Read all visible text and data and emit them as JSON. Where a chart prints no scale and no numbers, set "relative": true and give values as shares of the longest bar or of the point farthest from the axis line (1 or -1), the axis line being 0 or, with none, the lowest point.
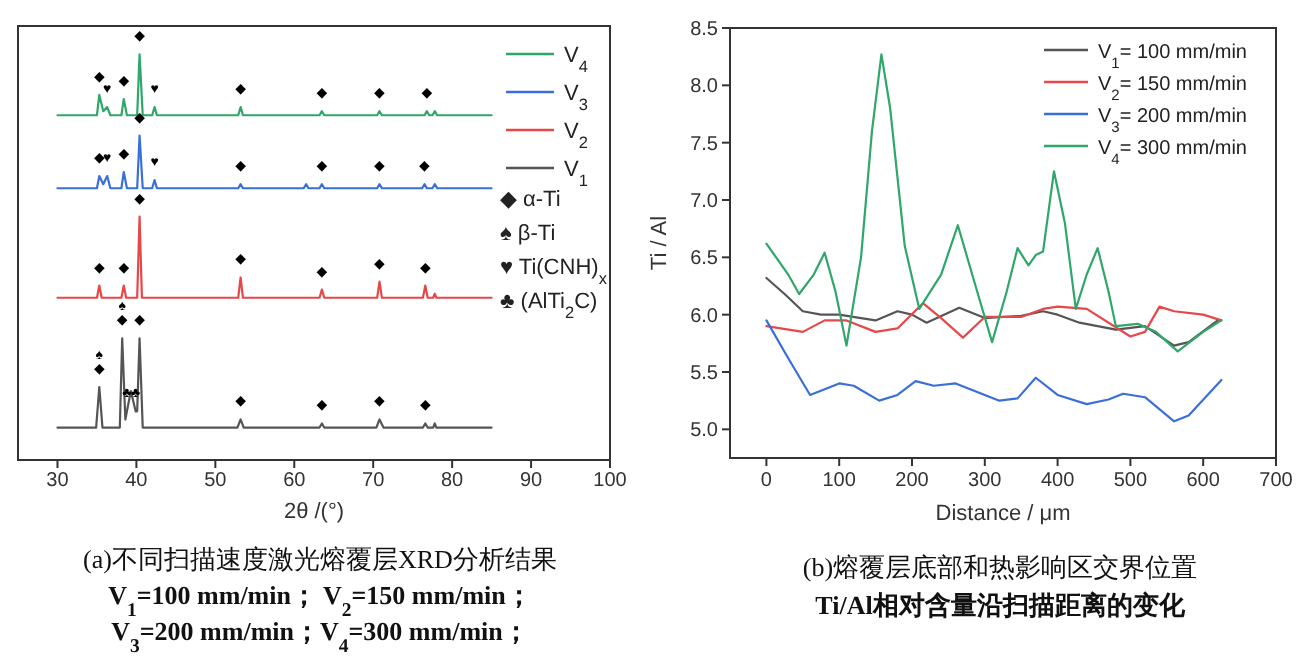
{
  "chart_data": [
    {
      "type": "line",
      "title": "(a)不同扫描速度激光熔覆层XRD分析结果",
      "subtitle": "V$_{1}$=100 mm/min；  V$_{2}$=150 mm/min；\nV$_{3}$=200 mm/min；V$_{4}$=300 mm/min；",
      "xlabel": "2θ /(°)",
      "relative": true,
      "xlim": [
        25,
        100
      ],
      "xticks": [
        30,
        40,
        50,
        60,
        70,
        80,
        90,
        100
      ],
      "legend": "top right",
      "series": [
        {
          "name": "V$_{4}$",
          "color": "#2fa66a",
          "x": [
            30,
            35.0,
            35.3,
            35.8,
            36.3,
            36.7,
            38.1,
            38.4,
            38.8,
            40.1,
            40.4,
            40.8,
            42.0,
            42.3,
            42.6,
            52.9,
            53.2,
            53.5,
            63.2,
            63.5,
            63.8,
            70.5,
            70.8,
            71.1,
            76.5,
            76.8,
            77.1,
            77.5,
            77.8,
            78.1,
            85
          ],
          "values": [
            0.85,
            0.85,
            0.9,
            0.86,
            0.87,
            0.85,
            0.85,
            0.89,
            0.85,
            0.85,
            1.0,
            0.85,
            0.85,
            0.87,
            0.85,
            0.85,
            0.87,
            0.85,
            0.85,
            0.86,
            0.85,
            0.85,
            0.86,
            0.85,
            0.85,
            0.86,
            0.85,
            0.85,
            0.86,
            0.85,
            0.85
          ]
        },
        {
          "name": "V$_{3}$",
          "color": "#3a6fd8",
          "x": [
            30,
            35.0,
            35.3,
            35.8,
            36.3,
            36.7,
            38.1,
            38.4,
            38.8,
            40.1,
            40.4,
            40.8,
            42.0,
            42.3,
            42.6,
            52.9,
            53.2,
            53.5,
            61.2,
            61.5,
            61.8,
            63.2,
            63.5,
            63.8,
            70.5,
            70.8,
            71.1,
            76.2,
            76.5,
            76.8,
            77.5,
            77.8,
            78.1,
            85
          ],
          "values": [
            0.67,
            0.67,
            0.7,
            0.68,
            0.7,
            0.67,
            0.67,
            0.71,
            0.67,
            0.67,
            0.8,
            0.67,
            0.67,
            0.69,
            0.67,
            0.67,
            0.68,
            0.67,
            0.67,
            0.68,
            0.67,
            0.67,
            0.68,
            0.67,
            0.67,
            0.68,
            0.67,
            0.67,
            0.68,
            0.67,
            0.67,
            0.68,
            0.67,
            0.67
          ]
        },
        {
          "name": "V$_{2}$",
          "color": "#e8474a",
          "x": [
            30,
            35.0,
            35.3,
            35.6,
            38.1,
            38.4,
            38.7,
            40.1,
            40.4,
            40.7,
            52.9,
            53.2,
            53.5,
            63.2,
            63.5,
            63.8,
            70.5,
            70.8,
            71.1,
            76.3,
            76.6,
            76.9,
            77.6,
            77.8,
            78.0,
            85
          ],
          "values": [
            0.4,
            0.4,
            0.43,
            0.4,
            0.4,
            0.43,
            0.4,
            0.4,
            0.6,
            0.4,
            0.4,
            0.45,
            0.4,
            0.4,
            0.42,
            0.4,
            0.4,
            0.44,
            0.4,
            0.4,
            0.43,
            0.4,
            0.4,
            0.41,
            0.4,
            0.4
          ]
        },
        {
          "name": "V$_{1}$",
          "color": "#555555",
          "x": [
            30,
            34.9,
            35.3,
            35.7,
            37.9,
            38.2,
            38.6,
            38.8,
            39.3,
            39.9,
            40.1,
            40.4,
            40.8,
            52.8,
            53.2,
            53.6,
            63.2,
            63.5,
            63.8,
            70.4,
            70.8,
            71.3,
            76.3,
            76.6,
            76.9,
            77.6,
            77.8,
            78.0,
            85
          ],
          "values": [
            0.08,
            0.08,
            0.18,
            0.08,
            0.08,
            0.3,
            0.1,
            0.12,
            0.17,
            0.12,
            0.12,
            0.3,
            0.08,
            0.08,
            0.1,
            0.08,
            0.08,
            0.09,
            0.08,
            0.08,
            0.1,
            0.08,
            0.08,
            0.09,
            0.08,
            0.08,
            0.09,
            0.08,
            0.08
          ]
        }
      ],
      "annotations": [
        "◆ α-Ti",
        "♠ β-Ti",
        "♥ Ti(CNH)$_{x}$",
        "♣ (AlTi$_{2}$C)",
        {
          "text": "◆",
          "x": 35.3,
          "y": 0.9
        },
        {
          "text": "♥",
          "x": 36.3,
          "y": 0.87
        },
        {
          "text": "◆",
          "x": 38.4,
          "y": 0.89
        },
        {
          "text": "◆",
          "x": 40.4,
          "y": 1.0
        },
        {
          "text": "♥",
          "x": 42.3,
          "y": 0.87
        },
        {
          "text": "◆",
          "x": 53.2,
          "y": 0.87
        },
        {
          "text": "◆",
          "x": 63.5,
          "y": 0.86
        },
        {
          "text": "◆",
          "x": 70.8,
          "y": 0.86
        },
        {
          "text": "◆",
          "x": 76.8,
          "y": 0.86
        },
        {
          "text": "◆",
          "x": 35.3,
          "y": 0.7
        },
        {
          "text": "♥",
          "x": 36.3,
          "y": 0.7
        },
        {
          "text": "◆",
          "x": 38.4,
          "y": 0.71
        },
        {
          "text": "◆",
          "x": 40.4,
          "y": 0.8
        },
        {
          "text": "♥",
          "x": 42.3,
          "y": 0.69
        },
        {
          "text": "◆",
          "x": 53.2,
          "y": 0.68
        },
        {
          "text": "◆",
          "x": 63.5,
          "y": 0.68
        },
        {
          "text": "◆",
          "x": 70.8,
          "y": 0.68
        },
        {
          "text": "◆",
          "x": 76.5,
          "y": 0.68
        },
        {
          "text": "◆",
          "x": 35.3,
          "y": 0.43
        },
        {
          "text": "◆",
          "x": 38.4,
          "y": 0.43
        },
        {
          "text": "◆",
          "x": 40.4,
          "y": 0.6
        },
        {
          "text": "◆",
          "x": 53.2,
          "y": 0.45
        },
        {
          "text": "◆",
          "x": 63.5,
          "y": 0.42
        },
        {
          "text": "◆",
          "x": 70.8,
          "y": 0.44
        },
        {
          "text": "◆",
          "x": 76.6,
          "y": 0.43
        },
        {
          "text": "◆",
          "x": 35.3,
          "y": 0.18
        },
        {
          "text": "♠",
          "x": 35.3,
          "y": 0.18
        },
        {
          "text": "◆",
          "x": 38.2,
          "y": 0.3
        },
        {
          "text": "♠",
          "x": 38.2,
          "y": 0.3
        },
        {
          "text": "♣",
          "x": 38.8,
          "y": 0.12
        },
        {
          "text": "♣",
          "x": 39.9,
          "y": 0.12
        },
        {
          "text": "◆",
          "x": 40.4,
          "y": 0.3
        },
        {
          "text": "◆",
          "x": 53.2,
          "y": 0.1
        },
        {
          "text": "◆",
          "x": 63.5,
          "y": 0.09
        },
        {
          "text": "◆",
          "x": 70.8,
          "y": 0.1
        },
        {
          "text": "◆",
          "x": 76.6,
          "y": 0.09
        }
      ]
    },
    {
      "type": "line",
      "title": "(b)熔覆层底部和热影响区交界位置",
      "subtitle": "Ti/Al相对含量沿扫描距离的变化",
      "xlabel": "Distance / μm",
      "ylabel": "Ti / Al",
      "xlim": [
        -50,
        700
      ],
      "xticks": [
        0,
        100,
        200,
        300,
        400,
        500,
        600,
        700
      ],
      "ylim": [
        4.75,
        8.5
      ],
      "yticks": [
        {
          "value": 5,
          "label": "5.0"
        },
        {
          "value": 5.5,
          "label": "5.5"
        },
        {
          "value": 6,
          "label": "6.0"
        },
        {
          "value": 6.5,
          "label": "6.5"
        },
        {
          "value": 7,
          "label": "7.0"
        },
        {
          "value": 7.5,
          "label": "7.5"
        },
        {
          "value": 8,
          "label": "8.0"
        },
        {
          "value": 8.5,
          "label": "8.5"
        }
      ],
      "legend": "top right",
      "series": [
        {
          "name": "V$_{1}$= 100 mm/min",
          "color": "#555555",
          "x": [
            0,
            25,
            50,
            75,
            100,
            130,
            150,
            180,
            200,
            220,
            265,
            300,
            350,
            380,
            400,
            430,
            480,
            520,
            560,
            580,
            620
          ],
          "values": [
            6.32,
            6.18,
            6.03,
            6.0,
            6.0,
            5.97,
            5.95,
            6.03,
            6.0,
            5.93,
            6.06,
            5.97,
            5.99,
            6.03,
            6.0,
            5.93,
            5.87,
            5.9,
            5.73,
            5.76,
            5.95
          ]
        },
        {
          "name": "V$_{2}$= 150 mm/min",
          "color": "#e8474a",
          "x": [
            0,
            50,
            80,
            110,
            150,
            180,
            215,
            240,
            270,
            300,
            350,
            380,
            400,
            440,
            500,
            520,
            540,
            560,
            600,
            625
          ],
          "values": [
            5.9,
            5.85,
            5.95,
            5.95,
            5.85,
            5.88,
            6.1,
            5.97,
            5.8,
            5.98,
            5.98,
            6.05,
            6.07,
            6.05,
            5.81,
            5.85,
            6.07,
            6.03,
            6.0,
            5.95
          ]
        },
        {
          "name": "V$_{3}$= 200 mm/min",
          "color": "#3a6fd8",
          "x": [
            0,
            30,
            60,
            100,
            120,
            155,
            180,
            205,
            230,
            260,
            280,
            320,
            345,
            370,
            400,
            440,
            470,
            490,
            520,
            560,
            580,
            625
          ],
          "values": [
            5.95,
            5.62,
            5.3,
            5.4,
            5.38,
            5.25,
            5.3,
            5.42,
            5.38,
            5.4,
            5.35,
            5.25,
            5.27,
            5.45,
            5.3,
            5.22,
            5.26,
            5.31,
            5.28,
            5.07,
            5.12,
            5.43
          ]
        },
        {
          "name": "V$_{4}$= 300 mm/min",
          "color": "#2fa66a",
          "x": [
            0,
            30,
            45,
            65,
            80,
            95,
            110,
            130,
            145,
            158,
            170,
            190,
            210,
            240,
            263,
            285,
            310,
            330,
            345,
            360,
            370,
            380,
            395,
            410,
            425,
            440,
            455,
            470,
            480,
            510,
            535,
            565,
            600,
            625
          ],
          "values": [
            6.62,
            6.35,
            6.18,
            6.35,
            6.54,
            6.2,
            5.73,
            6.5,
            7.6,
            8.27,
            7.8,
            6.6,
            6.05,
            6.35,
            6.78,
            6.3,
            5.76,
            6.2,
            6.58,
            6.43,
            6.52,
            6.55,
            7.25,
            6.8,
            6.05,
            6.35,
            6.58,
            6.2,
            5.9,
            5.92,
            5.85,
            5.68,
            5.85,
            5.95
          ]
        }
      ]
    }
  ]
}
